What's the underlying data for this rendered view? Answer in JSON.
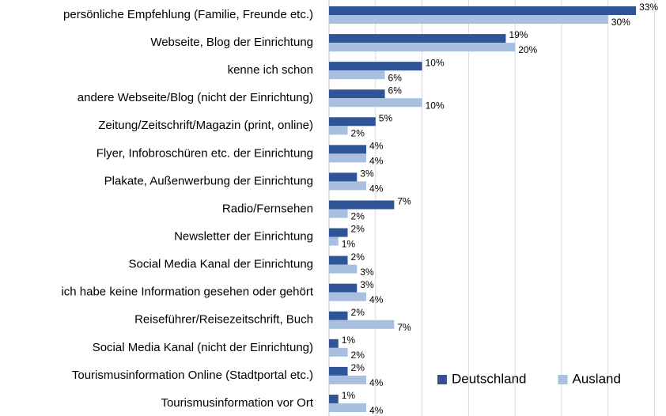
{
  "chart_data": {
    "type": "bar",
    "orientation": "horizontal",
    "categories": [
      "persönliche Empfehlung (Familie, Freunde etc.)",
      "Webseite, Blog der Einrichtung",
      "kenne ich schon",
      "andere Webseite/Blog (nicht der Einrichtung)",
      "Zeitung/Zeitschrift/Magazin (print, online)",
      "Flyer, Infobroschüren etc. der Einrichtung",
      "Plakate, Außenwerbung der Einrichtung",
      "Radio/Fernsehen",
      "Newsletter der Einrichtung",
      "Social Media Kanal der Einrichtung",
      "ich habe keine Information gesehen oder gehört",
      "Reiseführer/Reisezeitschrift, Buch",
      "Social Media Kanal (nicht der Einrichtung)",
      "Tourismusinformation Online (Stadtportal etc.)",
      "Tourismusinformation vor Ort"
    ],
    "series": [
      {
        "name": "Deutschland",
        "color": "#2f5597",
        "values": [
          33,
          19,
          10,
          6,
          5,
          4,
          3,
          7,
          2,
          2,
          3,
          2,
          1,
          2,
          1
        ],
        "value_labels": [
          "33%",
          "19%",
          "10%",
          "6%",
          "5%",
          "4%",
          "3%",
          "7%",
          "2%",
          "2%",
          "3%",
          "2%",
          "1%",
          "2%",
          "1%"
        ]
      },
      {
        "name": "Ausland",
        "color": "#a9bfe0",
        "values": [
          30,
          20,
          6,
          10,
          2,
          4,
          4,
          2,
          1,
          3,
          4,
          7,
          2,
          4,
          4
        ],
        "value_labels": [
          "30%",
          "20%",
          "6%",
          "10%",
          "2%",
          "4%",
          "4%",
          "2%",
          "1%",
          "3%",
          "4%",
          "7%",
          "2%",
          "4%",
          "4%"
        ]
      }
    ],
    "xlim": [
      0,
      35
    ],
    "xticks": [
      0,
      5,
      10,
      15,
      20,
      25,
      30,
      35
    ],
    "grid": true,
    "legend": "lower right"
  }
}
